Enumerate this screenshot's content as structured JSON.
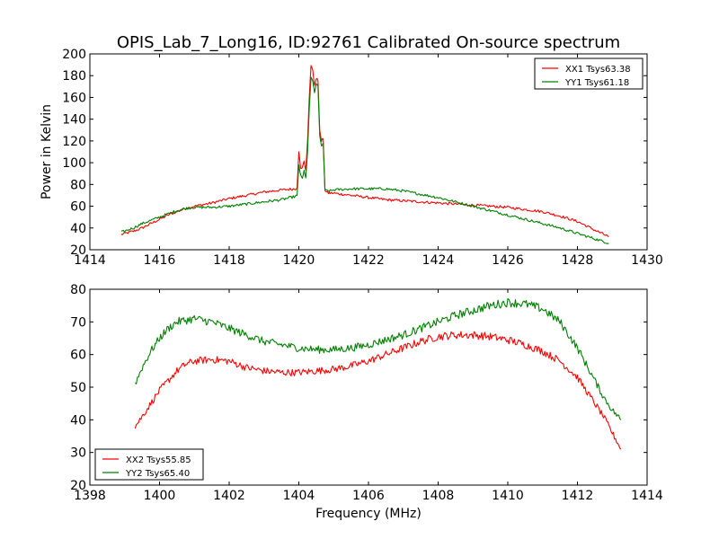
{
  "chart_data": [
    {
      "type": "line",
      "title": "OPIS_Lab_7_Long16, ID:92761 Calibrated On-source spectrum",
      "xlabel": "",
      "ylabel": "Power in Kelvin",
      "xlim": [
        1414,
        1430
      ],
      "ylim": [
        20,
        200
      ],
      "xticks": [
        "1414",
        "1416",
        "1418",
        "1420",
        "1422",
        "1424",
        "1426",
        "1428",
        "1430"
      ],
      "yticks": [
        "20",
        "40",
        "60",
        "80",
        "100",
        "120",
        "140",
        "160",
        "180",
        "200"
      ],
      "grid": false,
      "legend_position": "top-right",
      "series": [
        {
          "name": "XX1 Tsys63.38",
          "color": "#ff0000",
          "x": [
            1414.9,
            1415.25,
            1415.5,
            1415.75,
            1416,
            1416.25,
            1416.5,
            1416.75,
            1417,
            1417.5,
            1418,
            1418.5,
            1419,
            1419.5,
            1419.9,
            1419.95,
            1420.0,
            1420.05,
            1420.1,
            1420.15,
            1420.2,
            1420.25,
            1420.3,
            1420.35,
            1420.4,
            1420.45,
            1420.5,
            1420.55,
            1420.6,
            1420.65,
            1420.7,
            1420.75,
            1420.8,
            1420.85,
            1420.9,
            1421.0,
            1421.5,
            1422,
            1422.5,
            1423,
            1423.5,
            1424,
            1424.5,
            1425,
            1425.5,
            1426,
            1426.5,
            1427,
            1427.5,
            1428,
            1428.5,
            1428.9
          ],
          "y": [
            34,
            37,
            40,
            44,
            48,
            52,
            55,
            58,
            60,
            63,
            67,
            70,
            73,
            75,
            76,
            77,
            110,
            96,
            95,
            101,
            93,
            120,
            160,
            190,
            185,
            170,
            178,
            175,
            130,
            120,
            122,
            75,
            73,
            72,
            72,
            72,
            70,
            68,
            66,
            65,
            64,
            63,
            62,
            61,
            60,
            59,
            57,
            55,
            51,
            46,
            38,
            32
          ]
        },
        {
          "name": "YY1 Tsys61.18",
          "color": "#008000",
          "x": [
            1414.9,
            1415.25,
            1415.5,
            1415.75,
            1416,
            1416.25,
            1416.5,
            1416.75,
            1417,
            1417.5,
            1418,
            1418.5,
            1419,
            1419.5,
            1419.9,
            1419.95,
            1420.0,
            1420.05,
            1420.1,
            1420.15,
            1420.2,
            1420.25,
            1420.3,
            1420.35,
            1420.4,
            1420.45,
            1420.5,
            1420.55,
            1420.6,
            1420.65,
            1420.7,
            1420.75,
            1420.8,
            1420.85,
            1420.9,
            1421.0,
            1421.5,
            1422,
            1422.5,
            1423,
            1423.5,
            1424,
            1424.5,
            1425,
            1425.5,
            1426,
            1426.5,
            1427,
            1427.5,
            1428,
            1428.5,
            1428.9
          ],
          "y": [
            36,
            40,
            44,
            47,
            50,
            53,
            56,
            58,
            59,
            59,
            60,
            62,
            64,
            66,
            69,
            70,
            98,
            88,
            86,
            92,
            86,
            110,
            150,
            178,
            175,
            165,
            172,
            170,
            125,
            115,
            118,
            75,
            74,
            74,
            74,
            75,
            76,
            76,
            76,
            74,
            71,
            68,
            64,
            60,
            56,
            52,
            48,
            44,
            40,
            35,
            30,
            26
          ]
        }
      ]
    },
    {
      "type": "line",
      "title": "",
      "xlabel": "Frequency (MHz)",
      "ylabel": "",
      "xlim": [
        1398,
        1414
      ],
      "ylim": [
        20,
        80
      ],
      "xticks": [
        "1398",
        "1400",
        "1402",
        "1404",
        "1406",
        "1408",
        "1410",
        "1412",
        "1414"
      ],
      "yticks": [
        "20",
        "30",
        "40",
        "50",
        "60",
        "70",
        "80"
      ],
      "grid": false,
      "legend_position": "bottom-left",
      "series": [
        {
          "name": "XX2 Tsys55.85",
          "color": "#ff0000",
          "x": [
            1399.3,
            1399.5,
            1399.75,
            1400,
            1400.25,
            1400.5,
            1400.75,
            1401,
            1401.5,
            1402,
            1402.5,
            1403,
            1403.5,
            1404,
            1404.5,
            1405,
            1405.5,
            1406,
            1406.5,
            1407,
            1407.5,
            1408,
            1408.5,
            1409,
            1409.5,
            1410,
            1410.5,
            1411,
            1411.5,
            1412,
            1412.25,
            1412.5,
            1412.75,
            1413,
            1413.25
          ],
          "y": [
            38,
            41,
            45,
            49,
            52,
            55,
            57,
            58,
            58.5,
            58,
            56,
            55,
            54.5,
            54.5,
            55,
            55.5,
            56.5,
            58,
            60,
            62,
            64,
            65.5,
            66,
            66,
            65.5,
            64.5,
            63,
            61,
            58,
            53,
            49,
            45,
            41,
            36,
            31
          ]
        },
        {
          "name": "YY2 Tsys65.40",
          "color": "#008000",
          "x": [
            1399.3,
            1399.5,
            1399.75,
            1400,
            1400.25,
            1400.5,
            1400.75,
            1401,
            1401.5,
            1402,
            1402.5,
            1403,
            1403.5,
            1404,
            1404.5,
            1405,
            1405.5,
            1406,
            1406.5,
            1407,
            1407.5,
            1408,
            1408.5,
            1409,
            1409.5,
            1410,
            1410.5,
            1411,
            1411.5,
            1412,
            1412.25,
            1412.5,
            1412.75,
            1413,
            1413.25
          ],
          "y": [
            51,
            56,
            61,
            65,
            68,
            70,
            70.5,
            71,
            70,
            68,
            66,
            64,
            63,
            62,
            61.5,
            61.5,
            62,
            63,
            64.5,
            66,
            68,
            70,
            72,
            73.5,
            75,
            76,
            75.5,
            74,
            70,
            62,
            57,
            52,
            47,
            43,
            40
          ]
        }
      ]
    }
  ]
}
